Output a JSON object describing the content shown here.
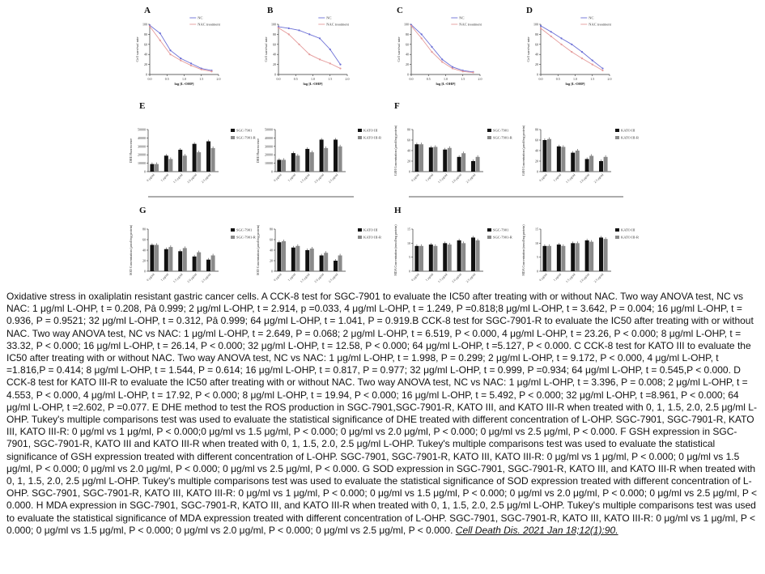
{
  "caption": {
    "text": "Oxidative stress in oxaliplatin resistant gastric cancer cells. A CCK-8 test for SGC-7901 to evaluate the IC50 after treating with or without NAC. Two way ANOVA test, NC vs NAC: 1 μg/ml L-OHP, t = 0.208, Pâ 0.999; 2 μg/ml L-OHP, t = 2.914, p =0.033, 4 μg/ml L-OHP, t = 1.249, P =0.818;8 μg/ml L-OHP, t = 3.642, P = 0.004; 16 μg/ml L-OHP, t = 0.936, P = 0.9521; 32 μg/ml L-OHP, t = 0.312, Pâ 0.999; 64 μg/ml L-OHP, t = 1.041, P = 0.919.B CCK-8 test for SGC-7901-R to evaluate the IC50 after treating with or without NAC. Two way ANOVA test, NC vs NAC: 1 μg/ml L-OHP, t = 2.649, P = 0.068; 2 μg/ml L-OHP, t = 6.519, P < 0.000, 4 μg/ml L-OHP, t = 23.26, P < 0.000; 8 μg/ml L-OHP, t = 33.32, P < 0.000; 16 μg/ml L-OHP, t = 26.14, P < 0.000; 32 μg/ml L-OHP, t = 12.58, P < 0.000; 64 μg/ml L-OHP, t =5.127, P < 0.000. C CCK-8 test for KATO III to evaluate the IC50 after treating with or without NAC. Two way ANOVA test, NC vs NAC: 1 μg/ml L-OHP, t = 1.998, P = 0.299; 2 μg/ml L-OHP, t = 9.172, P < 0.000, 4 μg/ml L-OHP, t =1.816,P = 0.414; 8 μg/ml L-OHP, t = 1.544, P = 0.614; 16 μg/ml L-OHP, t = 0.817, P = 0.977; 32 μg/ml L-OHP, t = 0.999, P =0.934; 64 μg/ml L-OHP, t = 0.545,P < 0.000. D CCK-8 test for KATO III-R to evaluate the IC50 after treating with or without NAC. Two way ANOVA test, NC vs NAC: 1 μg/ml L-OHP, t = 3.396, P = 0.008; 2 μg/ml L-OHP, t = 4.553, P < 0.000, 4 μg/ml L-OHP, t = 17.92, P < 0.000; 8 μg/ml L-OHP, t = 19.94, P < 0.000; 16 μg/ml L-OHP, t = 5.492, P < 0.000; 32 μg/ml L-OHP, t =8.961, P < 0.000; 64 μg/ml L-OHP, t =2.602, P =0.077. E DHE method to test the ROS production in SGC-7901,SGC-7901-R, KATO III, and KATO III-R when treated with 0, 1, 1.5, 2.0, 2.5 μg/ml L-OHP. Tukey's multiple comparisons test was used to evaluate the statistical significance of DHE treated with different concentration of L-OHP. SGC-7901, SGC-7901-R, KATO III, KATO III-R: 0 μg/ml vs 1 μg/ml, P < 0.000;0 μg/ml vs 1.5 μg/ml, P < 0.000; 0 μg/ml vs 2.0 μg/ml, P < 0.000; 0 μg/ml vs 2.5 μg/ml, P < 0.000. F GSH expression in SGC-7901, SGC-7901-R, KATO III and KATO III-R when treated with 0, 1, 1.5, 2.0, 2.5 μg/ml L-OHP. Tukey's multiple comparisons test was used to evaluate the statistical significance of GSH expression treated with different concentration of L-OHP. SGC-7901, SGC-7901-R, KATO III, KATO III-R: 0 μg/ml vs 1 μg/ml, P < 0.000; 0 μg/ml vs 1.5 μg/ml, P < 0.000; 0 μg/ml vs 2.0 μg/ml, P < 0.000; 0 μg/ml vs 2.5 μg/ml, P < 0.000. G SOD expression in SGC-7901, SGC-7901-R, KATO III, and KATO III-R when treated with 0, 1, 1.5, 2.0, 2.5 μg/ml L-OHP. Tukey's multiple comparisons test was used to evaluate the statistical significance of SOD expression treated with different concentration of L-OHP. SGC-7901, SGC-7901-R, KATO III, KATO III-R: 0 μg/ml vs 1 μg/ml, P < 0.000; 0 μg/ml vs 1.5 μg/ml, P < 0.000; 0 μg/ml vs 2.0 μg/ml, P < 0.000; 0 μg/ml vs 2.5 μg/ml, P < 0.000. H MDA expression in SGC-7901, SGC-7901-R, KATO III, and KATO III-R when treated with 0, 1, 1.5, 2.0, 2.5 μg/ml L-OHP. Tukey's multiple comparisons test was used to evaluate the statistical significance of MDA expression treated with different concentration of L-OHP. SGC-7901, SGC-7901-R, KATO III, KATO III-R: 0 μg/ml vs 1 μg/ml, P < 0.000; 0 μg/ml vs 1.5 μg/ml, P < 0.000; 0 μg/ml vs 2.0 μg/ml, P < 0.000; 0 μg/ml vs 2.5 μg/ml, P < 0.000.",
    "citation": "Cell Death Dis. 2021 Jan 18;12(1):90."
  },
  "colors": {
    "nc": "#6b6fd6",
    "nac": "#e59a9a",
    "dark_bar": "#111111",
    "light_bar": "#8a8a8a"
  },
  "chart_data": [
    {
      "panel": "A",
      "type": "line",
      "ylabel": "Cell survival rate",
      "xlabel": "log [L-OHP]",
      "xticks": [
        "0.0",
        "0.5",
        "1.0",
        "1.5",
        "2.0"
      ],
      "yticks": [
        "0",
        "20",
        "40",
        "60",
        "80",
        "100"
      ],
      "xlim": [
        0,
        2
      ],
      "ylim": [
        0,
        100
      ],
      "legend": "top-right",
      "series": [
        {
          "name": "NC",
          "x": [
            0.0,
            0.3,
            0.6,
            0.9,
            1.2,
            1.5,
            1.8
          ],
          "y": [
            98,
            82,
            48,
            32,
            22,
            12,
            8
          ]
        },
        {
          "name": "NAC treatment",
          "x": [
            0.0,
            0.3,
            0.6,
            0.9,
            1.2,
            1.5,
            1.8
          ],
          "y": [
            96,
            68,
            40,
            28,
            18,
            10,
            6
          ]
        }
      ]
    },
    {
      "panel": "B",
      "type": "line",
      "ylabel": "Cell survival rate",
      "xlabel": "log [L-OHP]",
      "xticks": [
        "0.0",
        "0.5",
        "1.0",
        "1.5",
        "2.0"
      ],
      "yticks": [
        "0",
        "20",
        "40",
        "60",
        "80",
        "100"
      ],
      "xlim": [
        0,
        2
      ],
      "ylim": [
        0,
        100
      ],
      "legend": "top-right",
      "series": [
        {
          "name": "NC",
          "x": [
            0.0,
            0.3,
            0.6,
            0.9,
            1.2,
            1.5,
            1.8
          ],
          "y": [
            95,
            92,
            88,
            80,
            72,
            50,
            20
          ]
        },
        {
          "name": "NAC treatment",
          "x": [
            0.0,
            0.3,
            0.6,
            0.9,
            1.2,
            1.5,
            1.8
          ],
          "y": [
            93,
            80,
            60,
            40,
            30,
            22,
            12
          ]
        }
      ]
    },
    {
      "panel": "C",
      "type": "line",
      "ylabel": "Cell survival rate",
      "xlabel": "log [L-OHP]",
      "xticks": [
        "0.0",
        "0.5",
        "1.0",
        "1.5",
        "2.0"
      ],
      "yticks": [
        "0",
        "20",
        "40",
        "60",
        "80",
        "100"
      ],
      "xlim": [
        0,
        2
      ],
      "ylim": [
        0,
        100
      ],
      "legend": "top-right",
      "series": [
        {
          "name": "NC",
          "x": [
            0.0,
            0.3,
            0.6,
            0.9,
            1.2,
            1.5,
            1.8
          ],
          "y": [
            99,
            80,
            55,
            30,
            15,
            8,
            5
          ]
        },
        {
          "name": "NAC treatment",
          "x": [
            0.0,
            0.3,
            0.6,
            0.9,
            1.2,
            1.5,
            1.8
          ],
          "y": [
            97,
            72,
            45,
            25,
            12,
            6,
            4
          ]
        }
      ]
    },
    {
      "panel": "D",
      "type": "line",
      "ylabel": "Cell survival rate",
      "xlabel": "log [L-OHP]",
      "xticks": [
        "0.0",
        "0.5",
        "1.0",
        "1.5",
        "2.0"
      ],
      "yticks": [
        "0",
        "20",
        "40",
        "60",
        "80",
        "100"
      ],
      "xlim": [
        0,
        2
      ],
      "ylim": [
        0,
        100
      ],
      "legend": "top-right",
      "series": [
        {
          "name": "NC",
          "x": [
            0.0,
            0.3,
            0.6,
            0.9,
            1.2,
            1.5,
            1.8
          ],
          "y": [
            97,
            85,
            72,
            60,
            45,
            28,
            12
          ]
        },
        {
          "name": "NAC treatment",
          "x": [
            0.0,
            0.3,
            0.6,
            0.9,
            1.2,
            1.5,
            1.8
          ],
          "y": [
            92,
            76,
            60,
            45,
            32,
            20,
            8
          ]
        }
      ]
    },
    {
      "panel": "E",
      "type": "bar",
      "ylabel": "DHE Fluorescence",
      "categories": [
        "0 μg/ml",
        "1 μg/ml",
        "1.5 μg/ml",
        "2.0 μg/ml",
        "2.5 μg/ml"
      ],
      "yticks": [
        "0",
        "10000",
        "20000",
        "30000",
        "40000",
        "50000"
      ],
      "ylim": [
        0,
        50000
      ],
      "legend": "top-right",
      "series": [
        {
          "name": "SGC-7901",
          "values": [
            9000,
            19000,
            26000,
            33000,
            36000
          ]
        },
        {
          "name": "SGC-7901-R",
          "values": [
            9000,
            15000,
            19000,
            23000,
            28000
          ]
        }
      ]
    },
    {
      "panel": "E",
      "type": "bar",
      "ylabel": "DHE Fluorescence",
      "categories": [
        "0 μg/ml",
        "1 μg/ml",
        "1.5 μg/ml",
        "2.0 μg/ml",
        "2.5 μg/ml"
      ],
      "yticks": [
        "0",
        "10000",
        "20000",
        "30000",
        "40000",
        "50000"
      ],
      "ylim": [
        0,
        50000
      ],
      "legend": "top-right",
      "series": [
        {
          "name": "KATO III",
          "values": [
            14000,
            22000,
            27000,
            38000,
            38000
          ]
        },
        {
          "name": "KATO III-R",
          "values": [
            14000,
            19000,
            23000,
            28000,
            30000
          ]
        }
      ]
    },
    {
      "panel": "F",
      "type": "bar",
      "ylabel": "GSH Concentration (μmol/mg protein)",
      "categories": [
        "0 μg/ml",
        "1 μg/ml",
        "1.5 μg/ml",
        "2.0 μg/ml",
        "2.5 μg/ml"
      ],
      "yticks": [
        "0",
        "20",
        "40",
        "60",
        "80"
      ],
      "ylim": [
        0,
        80
      ],
      "legend": "top-right",
      "series": [
        {
          "name": "SGC-7901",
          "values": [
            52,
            46,
            42,
            28,
            20
          ]
        },
        {
          "name": "SGC-7901-R",
          "values": [
            52,
            47,
            45,
            35,
            28
          ]
        }
      ]
    },
    {
      "panel": "F",
      "type": "bar",
      "ylabel": "GSH Concentration (μmol/mg protein)",
      "categories": [
        "0 μg/ml",
        "1 μg/ml",
        "1.5 μg/ml",
        "2.0 μg/ml",
        "2.5 μg/ml"
      ],
      "yticks": [
        "0",
        "20",
        "40",
        "60",
        "80"
      ],
      "ylim": [
        0,
        80
      ],
      "legend": "top-right",
      "series": [
        {
          "name": "KATO III",
          "values": [
            60,
            48,
            36,
            24,
            20
          ]
        },
        {
          "name": "KATO III-R",
          "values": [
            62,
            47,
            40,
            30,
            28
          ]
        }
      ]
    },
    {
      "panel": "G",
      "type": "bar",
      "ylabel": "SOD Concentration (μmol/mg protein)",
      "categories": [
        "0 μg/ml",
        "1 μg/ml",
        "1.5 μg/ml",
        "2.0 μg/ml",
        "2.5 μg/ml"
      ],
      "yticks": [
        "0",
        "20",
        "40",
        "60",
        "80"
      ],
      "ylim": [
        0,
        80
      ],
      "legend": "top-right",
      "series": [
        {
          "name": "SGC-7901",
          "values": [
            50,
            42,
            38,
            28,
            22
          ]
        },
        {
          "name": "SGC-7901-R",
          "values": [
            50,
            46,
            44,
            36,
            30
          ]
        }
      ]
    },
    {
      "panel": "G",
      "type": "bar",
      "ylabel": "SOD Concentration (μmol/mg protein)",
      "categories": [
        "0 μg/ml",
        "1 μg/ml",
        "1.5 μg/ml",
        "2.0 μg/ml",
        "2.5 μg/ml"
      ],
      "yticks": [
        "0",
        "20",
        "40",
        "60",
        "80"
      ],
      "ylim": [
        0,
        80
      ],
      "legend": "top-right",
      "series": [
        {
          "name": "KATO III",
          "values": [
            55,
            45,
            40,
            30,
            20
          ]
        },
        {
          "name": "KATO III-R",
          "values": [
            57,
            48,
            43,
            35,
            30
          ]
        }
      ]
    },
    {
      "panel": "H",
      "type": "bar",
      "ylabel": "MDA Concentration (nmol/mg protein)",
      "categories": [
        "0 μg/ml",
        "1 μg/ml",
        "1.5 μg/ml",
        "2.0 μg/ml",
        "2.5 μg/ml"
      ],
      "yticks": [
        "0",
        "5",
        "10",
        "15"
      ],
      "ylim": [
        0,
        15
      ],
      "legend": "top-right",
      "series": [
        {
          "name": "SGC-7901",
          "values": [
            9,
            9.5,
            10,
            11,
            12
          ]
        },
        {
          "name": "SGC-7901-R",
          "values": [
            9,
            9,
            9.5,
            10,
            11
          ]
        }
      ]
    },
    {
      "panel": "H",
      "type": "bar",
      "ylabel": "MDA Concentration (nmol/mg protein)",
      "categories": [
        "0 μg/ml",
        "1 μg/ml",
        "1.5 μg/ml",
        "2.0 μg/ml",
        "2.5 μg/ml"
      ],
      "yticks": [
        "0",
        "5",
        "10",
        "15"
      ],
      "ylim": [
        0,
        15
      ],
      "legend": "top-right",
      "series": [
        {
          "name": "KATO III",
          "values": [
            9,
            9.5,
            10,
            11,
            12
          ]
        },
        {
          "name": "KATO III-R",
          "values": [
            9,
            9,
            10,
            10.5,
            11.5
          ]
        }
      ]
    }
  ]
}
